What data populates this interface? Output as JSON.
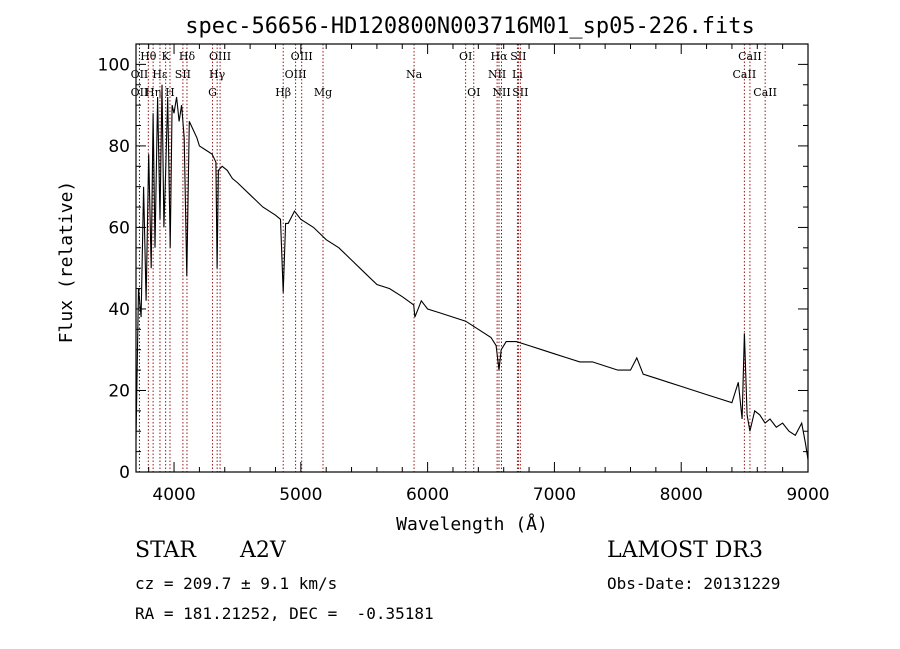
{
  "chart_data": {
    "type": "line",
    "title": "spec-56656-HD120800N003716M01_sp05-226.fits",
    "xlabel": "Wavelength (Å)",
    "ylabel": "Flux (relative)",
    "xlim": [
      3700,
      9000
    ],
    "ylim": [
      0,
      105
    ],
    "x_ticks": [
      4000,
      5000,
      6000,
      7000,
      8000,
      9000
    ],
    "y_ticks": [
      0,
      20,
      40,
      60,
      80,
      100
    ],
    "spectrum": {
      "x": [
        3700,
        3720,
        3740,
        3760,
        3780,
        3800,
        3820,
        3835,
        3850,
        3870,
        3889,
        3905,
        3920,
        3934,
        3950,
        3970,
        3985,
        4000,
        4020,
        4040,
        4060,
        4080,
        4101,
        4120,
        4150,
        4180,
        4200,
        4250,
        4300,
        4330,
        4340,
        4350,
        4380,
        4420,
        4460,
        4500,
        4600,
        4700,
        4800,
        4840,
        4861,
        4880,
        4900,
        4950,
        5000,
        5100,
        5200,
        5300,
        5400,
        5500,
        5600,
        5700,
        5800,
        5890,
        5900,
        5950,
        6000,
        6100,
        6200,
        6300,
        6400,
        6500,
        6540,
        6563,
        6580,
        6620,
        6700,
        6800,
        6900,
        7000,
        7100,
        7200,
        7300,
        7400,
        7500,
        7600,
        7650,
        7700,
        7800,
        7900,
        8000,
        8100,
        8200,
        8300,
        8400,
        8450,
        8480,
        8498,
        8520,
        8542,
        8580,
        8620,
        8662,
        8700,
        8750,
        8800,
        8850,
        8900,
        8950,
        8980,
        9000
      ],
      "y": [
        8,
        45,
        38,
        70,
        42,
        78,
        50,
        88,
        55,
        92,
        62,
        95,
        60,
        74,
        92,
        55,
        90,
        88,
        92,
        86,
        90,
        82,
        48,
        86,
        84,
        82,
        80,
        79,
        78,
        76,
        50,
        74,
        75,
        74,
        72,
        71,
        68,
        65,
        63,
        62,
        44,
        61,
        61,
        64,
        62,
        60,
        57,
        55,
        52,
        49,
        46,
        45,
        43,
        41,
        38,
        42,
        40,
        39,
        38,
        37,
        35,
        33,
        31,
        25,
        30,
        32,
        32,
        31,
        30,
        29,
        28,
        27,
        27,
        26,
        25,
        25,
        28,
        24,
        23,
        22,
        21,
        20,
        19,
        18,
        17,
        22,
        13,
        34,
        14,
        10,
        15,
        14,
        12,
        13,
        11,
        12,
        10,
        9,
        12,
        7,
        3
      ]
    },
    "lines": [
      {
        "label": "OII",
        "x": 3727,
        "row": 2
      },
      {
        "label": "OII",
        "x": 3727,
        "row": 1
      },
      {
        "label": "Hθ",
        "x": 3797,
        "row": 0
      },
      {
        "label": "Hη",
        "x": 3835,
        "row": 2
      },
      {
        "label": "Hε",
        "x": 3889,
        "row": 1
      },
      {
        "label": "K",
        "x": 3934,
        "row": 0
      },
      {
        "label": "H",
        "x": 3968,
        "row": 2
      },
      {
        "label": "SII",
        "x": 4070,
        "row": 1
      },
      {
        "label": "Hδ",
        "x": 4102,
        "row": 0
      },
      {
        "label": "G",
        "x": 4304,
        "row": 2
      },
      {
        "label": "Hγ",
        "x": 4340,
        "row": 1
      },
      {
        "label": "OIII",
        "x": 4363,
        "row": 0
      },
      {
        "label": "Hβ",
        "x": 4861,
        "row": 2
      },
      {
        "label": "OIII",
        "x": 4959,
        "row": 1
      },
      {
        "label": "OIII",
        "x": 5007,
        "row": 0
      },
      {
        "label": "Mg",
        "x": 5175,
        "row": 2
      },
      {
        "label": "Na",
        "x": 5893,
        "row": 1
      },
      {
        "label": "OI",
        "x": 6300,
        "row": 0
      },
      {
        "label": "OI",
        "x": 6364,
        "row": 2
      },
      {
        "label": "NII",
        "x": 6548,
        "row": 1
      },
      {
        "label": "Hα",
        "x": 6563,
        "row": 0
      },
      {
        "label": "NII",
        "x": 6583,
        "row": 2
      },
      {
        "label": "SII",
        "x": 6716,
        "row": 0
      },
      {
        "label": "Li",
        "x": 6708,
        "row": 1
      },
      {
        "label": "SII",
        "x": 6731,
        "row": 2
      },
      {
        "label": "CaII",
        "x": 8498,
        "row": 1
      },
      {
        "label": "CaII",
        "x": 8542,
        "row": 0
      },
      {
        "label": "CaII",
        "x": 8662,
        "row": 2
      }
    ]
  },
  "footer": {
    "object_type": "STAR",
    "subclass": "A2V",
    "survey": "LAMOST DR3",
    "cz": "cz = 209.7 ± 9.1 km/s",
    "obs_date": "Obs-Date: 20131229",
    "coords": "RA = 181.21252, DEC =  -0.35181"
  },
  "colors": {
    "line_marker": "#8b0000",
    "spectrum": "#000000"
  }
}
